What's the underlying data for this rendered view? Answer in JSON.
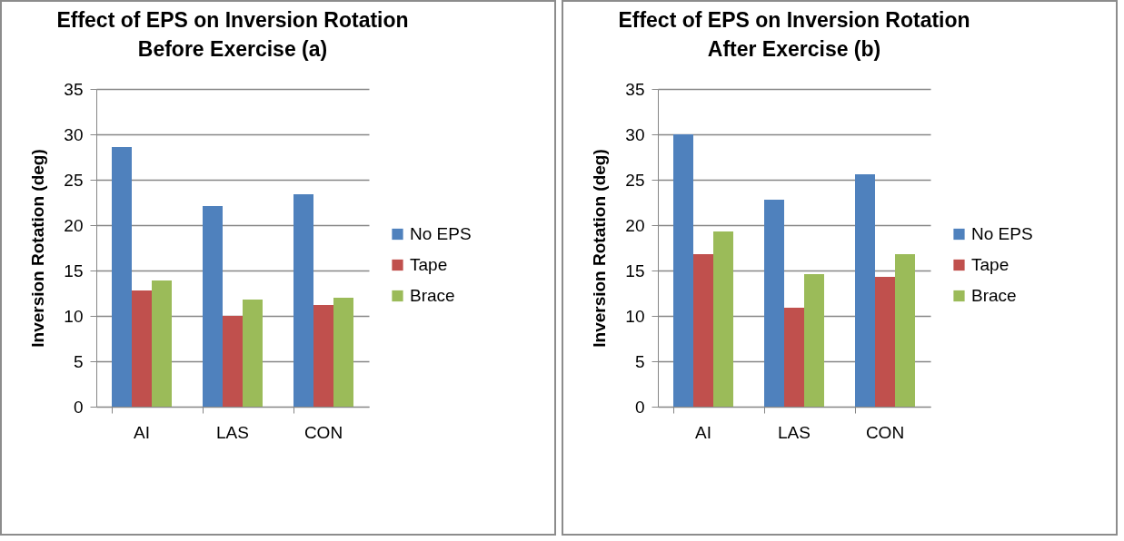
{
  "chart_data": [
    {
      "type": "bar",
      "title": "Effect of EPS on Inversion Rotation Before Exercise (a)",
      "ylabel": "Inversion Rotation (deg)",
      "categories": [
        "AI",
        "LAS",
        "CON"
      ],
      "series": [
        {
          "name": "No EPS",
          "color": "#4f81bd",
          "values": [
            28.6,
            22.1,
            23.4
          ]
        },
        {
          "name": "Tape",
          "color": "#c0504d",
          "values": [
            12.8,
            10.0,
            11.2
          ]
        },
        {
          "name": "Brace",
          "color": "#9bbb59",
          "values": [
            13.9,
            11.8,
            12.0
          ]
        }
      ],
      "ylim": [
        0,
        35
      ],
      "yticks": [
        0,
        5,
        10,
        15,
        20,
        25,
        30,
        35
      ],
      "grid": "y",
      "legend": "right"
    },
    {
      "type": "bar",
      "title": "Effect of EPS on Inversion Rotation After Exercise (b)",
      "ylabel": "Inversion Rotation (deg)",
      "categories": [
        "AI",
        "LAS",
        "CON"
      ],
      "series": [
        {
          "name": "No EPS",
          "color": "#4f81bd",
          "values": [
            30.0,
            22.8,
            25.6
          ]
        },
        {
          "name": "Tape",
          "color": "#c0504d",
          "values": [
            16.8,
            10.9,
            14.3
          ]
        },
        {
          "name": "Brace",
          "color": "#9bbb59",
          "values": [
            19.3,
            14.6,
            16.8
          ]
        }
      ],
      "ylim": [
        0,
        35
      ],
      "yticks": [
        0,
        5,
        10,
        15,
        20,
        25,
        30,
        35
      ],
      "grid": "y",
      "legend": "right"
    }
  ]
}
